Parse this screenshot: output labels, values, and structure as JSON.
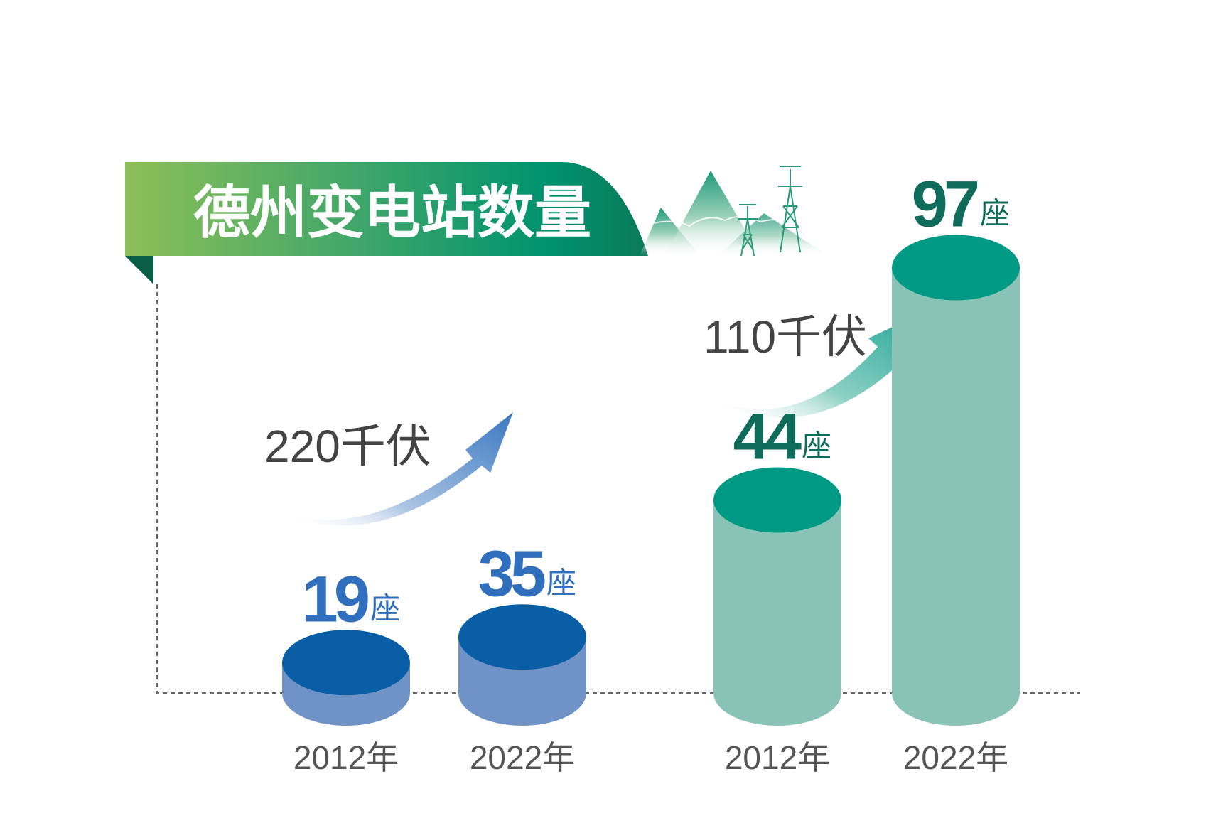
{
  "title": "德州变电站数量",
  "chart_data": {
    "type": "bar",
    "title": "德州变电站数量",
    "unit": "座",
    "groups": [
      {
        "name": "220千伏",
        "color_top": "#0a5ea6",
        "color_side": "#6f93c6",
        "arrow_color": "#3a78c0",
        "bars": [
          {
            "category": "2012年",
            "value": 19,
            "value_text": "19"
          },
          {
            "category": "2022年",
            "value": 35,
            "value_text": "35"
          }
        ]
      },
      {
        "name": "110千伏",
        "color_top": "#009a84",
        "color_side": "#88c3b6",
        "arrow_color": "#0b9e8f",
        "bars": [
          {
            "category": "2012年",
            "value": 44,
            "value_text": "44"
          },
          {
            "category": "2022年",
            "value": 97,
            "value_text": "97"
          }
        ]
      }
    ]
  }
}
